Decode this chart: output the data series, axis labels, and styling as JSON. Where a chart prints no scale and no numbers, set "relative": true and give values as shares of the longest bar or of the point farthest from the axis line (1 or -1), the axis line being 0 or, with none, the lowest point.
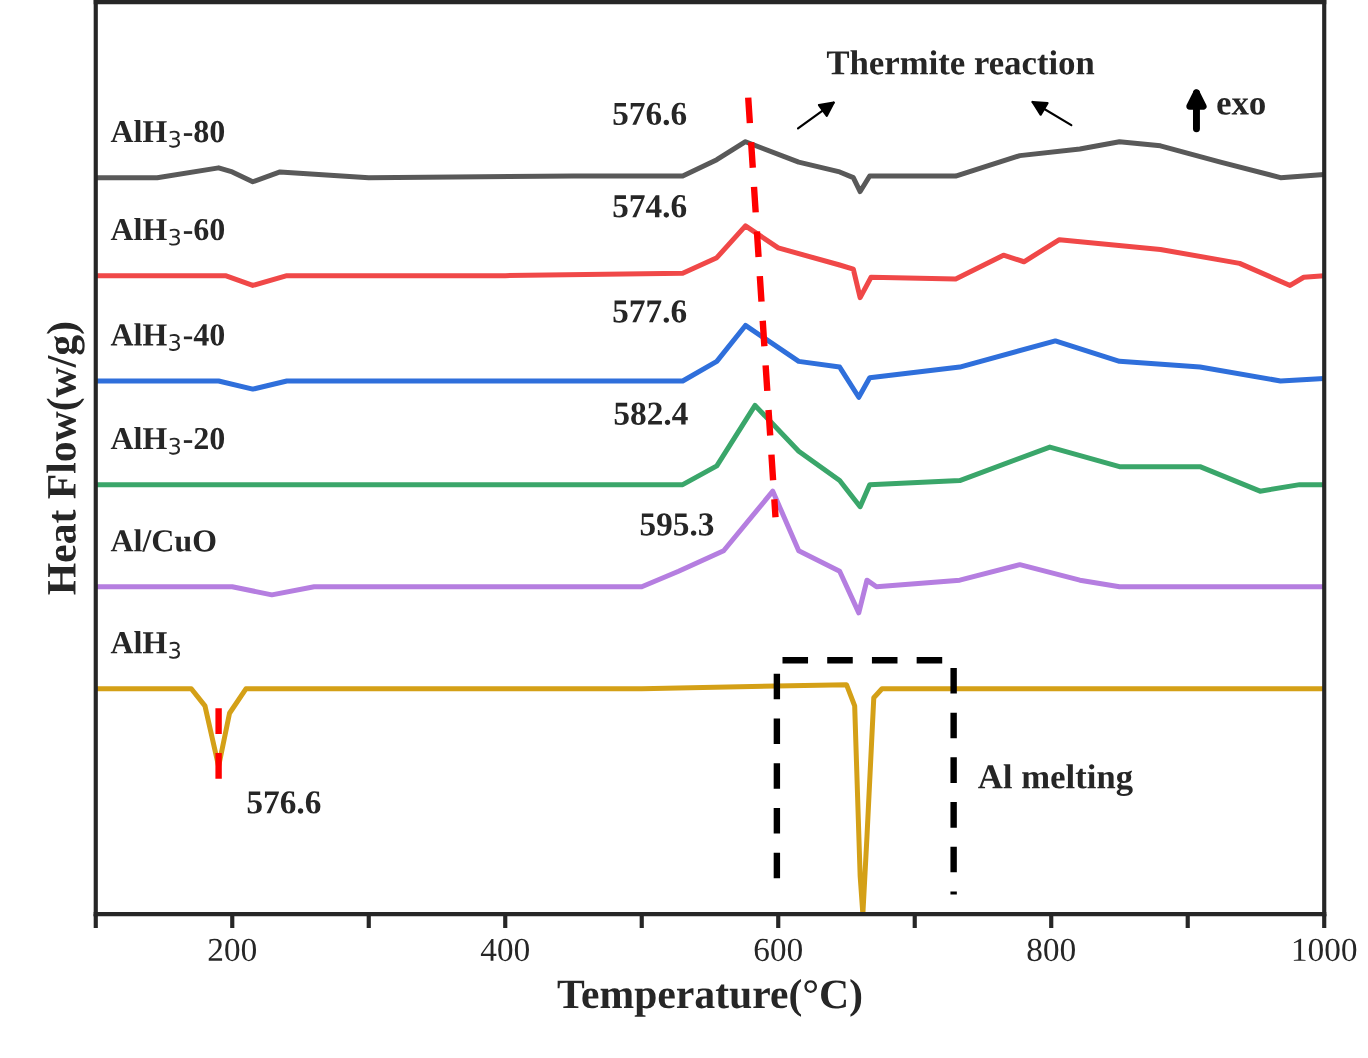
{
  "chart_data": {
    "type": "line",
    "relative": true,
    "xlabel": "Temperature(°C)",
    "ylabel": "Heat Flow(w/g)",
    "xlim": [
      100,
      1000
    ],
    "xticks": [
      {
        "value": 100,
        "label": null
      },
      200,
      {
        "value": 300,
        "label": null
      },
      400,
      {
        "value": 500,
        "label": null
      },
      600,
      {
        "value": 700,
        "label": null
      },
      800,
      {
        "value": 900,
        "label": null
      },
      1000
    ],
    "series": [
      {
        "name": "AlH$_{3}$-80",
        "color": "#595959",
        "x": [
          100,
          145,
          190,
          200,
          215,
          235,
          300,
          450,
          530,
          555,
          576,
          615,
          645,
          655,
          660,
          667,
          730,
          777,
          821,
          850,
          880,
          924,
          968,
          1000
        ],
        "values": [
          0.902,
          0.902,
          0.914,
          0.909,
          0.897,
          0.909,
          0.902,
          0.904,
          0.904,
          0.924,
          0.946,
          0.921,
          0.909,
          0.902,
          0.885,
          0.904,
          0.904,
          0.929,
          0.937,
          0.946,
          0.941,
          0.921,
          0.902,
          0.906
        ]
      },
      {
        "name": "AlH$_{3}$-60",
        "color": "#f04848",
        "x": [
          100,
          150,
          195,
          215,
          240,
          400,
          530,
          555,
          576,
          600,
          645,
          655,
          660,
          668,
          730,
          765,
          780,
          806,
          880,
          938,
          975,
          985,
          1000
        ],
        "values": [
          0.782,
          0.782,
          0.782,
          0.77,
          0.782,
          0.782,
          0.785,
          0.804,
          0.843,
          0.816,
          0.795,
          0.79,
          0.755,
          0.78,
          0.778,
          0.807,
          0.799,
          0.826,
          0.814,
          0.797,
          0.77,
          0.78,
          0.782
        ]
      },
      {
        "name": "AlH$_{3}$-40",
        "color": "#2f6fdb",
        "x": [
          100,
          190,
          215,
          240,
          530,
          555,
          576,
          615,
          645,
          659,
          667,
          733,
          803,
          850,
          909,
          968,
          1000
        ],
        "values": [
          0.653,
          0.653,
          0.643,
          0.653,
          0.653,
          0.677,
          0.721,
          0.677,
          0.67,
          0.633,
          0.657,
          0.67,
          0.702,
          0.677,
          0.67,
          0.653,
          0.656
        ]
      },
      {
        "name": "AlH$_{3}$-20",
        "color": "#3aa66a",
        "x": [
          100,
          300,
          530,
          555,
          583,
          615,
          645,
          660,
          667,
          733,
          799,
          850,
          909,
          953,
          982,
          1000
        ],
        "values": [
          0.526,
          0.526,
          0.526,
          0.549,
          0.623,
          0.567,
          0.531,
          0.499,
          0.526,
          0.531,
          0.572,
          0.548,
          0.548,
          0.518,
          0.526,
          0.526
        ]
      },
      {
        "name": "Al/CuO",
        "color": "#b57ee0",
        "x": [
          100,
          200,
          229,
          260,
          500,
          527,
          560,
          596,
          615,
          645,
          659,
          665,
          672,
          733,
          777,
          821,
          850,
          1000
        ],
        "values": [
          0.401,
          0.401,
          0.391,
          0.401,
          0.401,
          0.42,
          0.445,
          0.518,
          0.445,
          0.42,
          0.369,
          0.409,
          0.401,
          0.409,
          0.428,
          0.409,
          0.401,
          0.401
        ]
      },
      {
        "name": "AlH$_{3}$",
        "color": "#d4a017",
        "x": [
          100,
          170,
          180,
          190,
          198,
          210,
          500,
          650,
          656,
          660,
          662,
          665,
          670,
          676,
          1000
        ],
        "values": [
          0.276,
          0.276,
          0.255,
          0.181,
          0.246,
          0.276,
          0.276,
          0.281,
          0.255,
          0.047,
          0,
          0.095,
          0.265,
          0.276,
          0.276
        ]
      },
      {
        "color": "#ff0000",
        "line_style": "dashed",
        "x": [
          578,
          598
        ],
        "values": [
          1.0,
          0.486
        ]
      },
      {
        "color": "#ff0000",
        "line_style": "dashed",
        "x": [
          190,
          190
        ],
        "values": [
          0.252,
          0.164
        ]
      },
      {
        "color": "#000000",
        "line_style": "dashed",
        "x": [
          599,
          599,
          728.5,
          728.5
        ],
        "values": [
          0.044,
          0.311,
          0.311,
          0.024
        ]
      }
    ],
    "annotations": [
      {
        "text": "576.6",
        "x": 576,
        "y": 0.946
      },
      {
        "text": "574.6",
        "x": 576,
        "y": 0.843
      },
      {
        "text": "577.6",
        "x": 576,
        "y": 0.721
      },
      {
        "text": "582.4",
        "x": 583,
        "y": 0.623
      },
      {
        "text": "595.3",
        "x": 596,
        "y": 0.518
      },
      {
        "text": "576.6",
        "x": 190,
        "y": 0.181
      },
      "Thermite reaction",
      "exo",
      "Al melting"
    ]
  }
}
